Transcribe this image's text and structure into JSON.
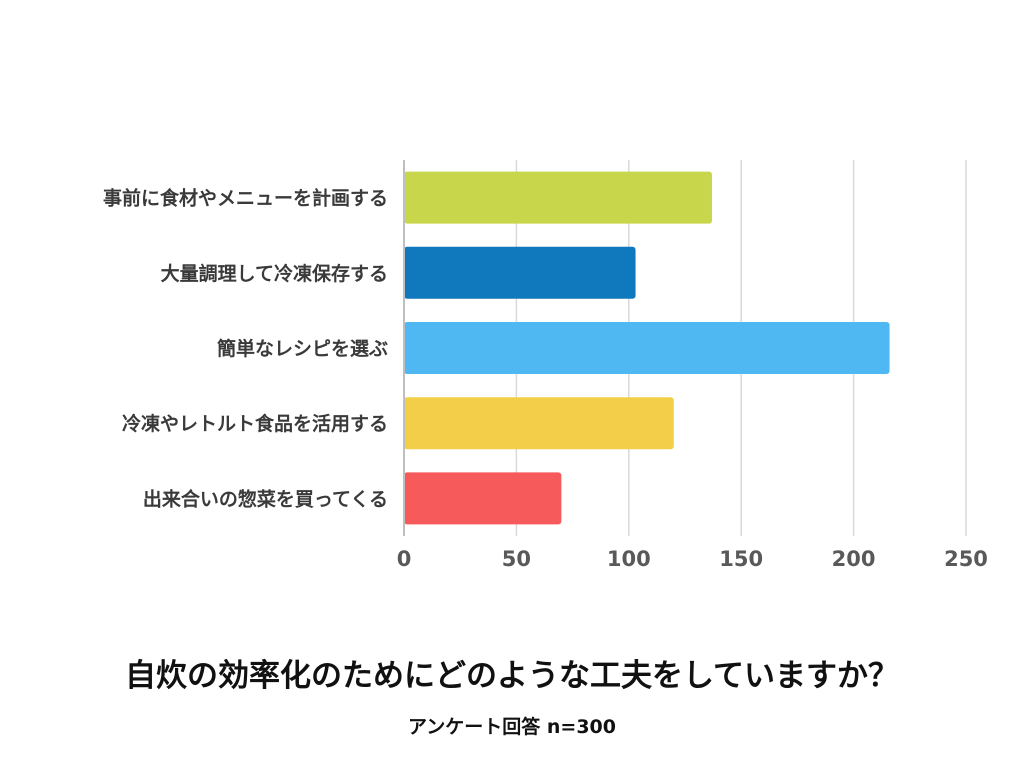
{
  "chart_data": {
    "type": "bar",
    "orientation": "horizontal",
    "title": "自炊の効率化のためにどのような工夫をしていますか？",
    "subtitle": "アンケート回答 n=300",
    "categories": [
      "事前に食材やメニューを計画する",
      "大量調理して冷凍保存する",
      "簡単なレシピを選ぶ",
      "冷凍やレトルト食品を活用する",
      "出来合いの惣菜を買ってくる"
    ],
    "values": [
      137,
      103,
      216,
      120,
      70
    ],
    "colors": [
      "#c7d64a",
      "#1079be",
      "#4fb8f2",
      "#f3ce49",
      "#f65a5a"
    ],
    "xlim": [
      0,
      250
    ],
    "xticks": [
      "0",
      "50",
      "100",
      "150",
      "200",
      "250"
    ],
    "xtick_values": [
      0,
      50,
      100,
      150,
      200,
      250
    ],
    "grid": true,
    "grid_color": "#d9d9d9",
    "axis_color": "#bfbfbf"
  }
}
